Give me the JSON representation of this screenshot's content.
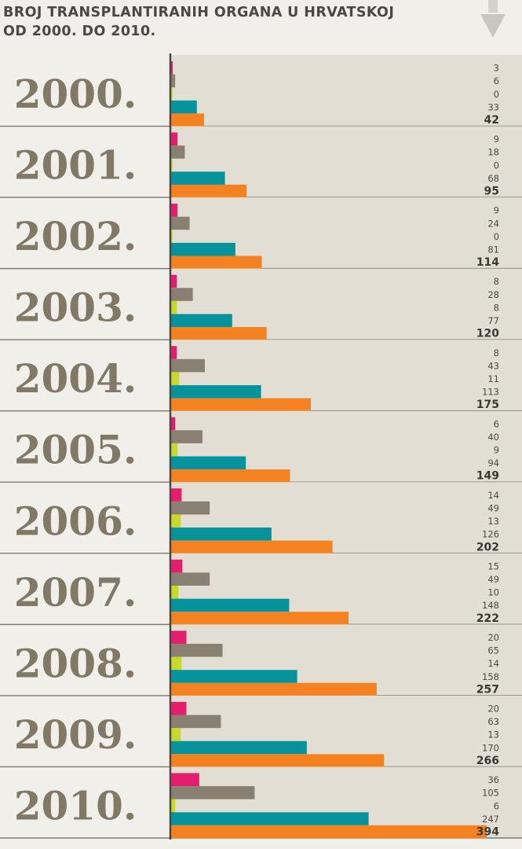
{
  "header": {
    "title_line1": "BROJ TRANSPLANTIRANIH ORGANA U HRVATSKOJ",
    "title_line2": "OD 2000. DO 2010."
  },
  "colors": {
    "series": [
      "#e41d6c",
      "#8a8071",
      "#c8d92e",
      "#07939c",
      "#f48220"
    ],
    "panel_bg": "#e2ded4",
    "page_bg": "#f1efea",
    "axis": "#4a4846"
  },
  "icons": {
    "header_badge": "arrow-down-icon"
  },
  "chart_data": {
    "type": "bar",
    "orientation": "horizontal",
    "title": "BROJ TRANSPLANTIRANIH ORGANA U HRVATSKOJ OD 2000. DO 2010.",
    "categories": [
      "2000.",
      "2001.",
      "2002.",
      "2003.",
      "2004.",
      "2005.",
      "2006.",
      "2007.",
      "2008.",
      "2009.",
      "2010."
    ],
    "series": [
      {
        "values": [
          3,
          9,
          9,
          8,
          8,
          6,
          14,
          15,
          20,
          20,
          36
        ]
      },
      {
        "values": [
          6,
          18,
          24,
          28,
          43,
          40,
          49,
          49,
          65,
          63,
          105
        ]
      },
      {
        "values": [
          0,
          0,
          0,
          8,
          11,
          9,
          13,
          10,
          14,
          13,
          6
        ]
      },
      {
        "values": [
          33,
          68,
          81,
          77,
          113,
          94,
          126,
          148,
          158,
          170,
          247
        ]
      },
      {
        "values": [
          42,
          95,
          114,
          120,
          175,
          149,
          202,
          222,
          257,
          266,
          394
        ]
      }
    ],
    "total_series_index": 4,
    "xlim": [
      0,
      394
    ],
    "grid": false,
    "legend": "none"
  }
}
